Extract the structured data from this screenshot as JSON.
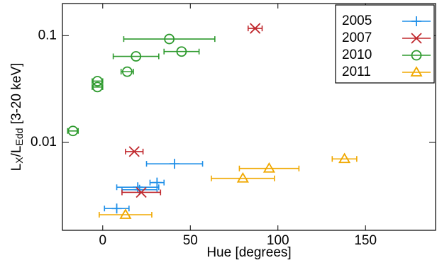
{
  "chart_data": {
    "type": "scatter",
    "xlabel": "Hue [degrees]",
    "ylabel": [
      "L",
      "X",
      "/L",
      "Edd",
      " [3-20 keV]"
    ],
    "xlim": [
      -23,
      190
    ],
    "xticks": [
      0,
      50,
      100,
      150
    ],
    "ylim": [
      0.0015,
      0.2
    ],
    "yticks": [
      0.01,
      0.1
    ],
    "ylog": true,
    "legend": "upper right",
    "series": [
      {
        "name": "2005",
        "color": "#1f8fe8",
        "marker": "plus",
        "x": [
          41,
          31,
          20,
          21,
          8
        ],
        "values": [
          0.0063,
          0.0042,
          0.0038,
          0.0036,
          0.0024
        ],
        "xerr": [
          16,
          4,
          12,
          10,
          7
        ]
      },
      {
        "name": "2007",
        "color": "#c0282d",
        "marker": "cross",
        "x": [
          87,
          18,
          22
        ],
        "values": [
          0.117,
          0.0082,
          0.0034
        ],
        "xerr": [
          4,
          5,
          11
        ]
      },
      {
        "name": "2010",
        "color": "#2e9a2e",
        "marker": "circle",
        "x": [
          38,
          45,
          19,
          14,
          -3,
          -3,
          -17
        ],
        "values": [
          0.093,
          0.071,
          0.064,
          0.046,
          0.0375,
          0.033,
          0.0128
        ],
        "xerr": [
          26,
          10,
          13,
          3.5,
          3,
          3,
          3
        ]
      },
      {
        "name": "2011",
        "color": "#f0a800",
        "marker": "triangle",
        "x": [
          138,
          95,
          80,
          13
        ],
        "values": [
          0.007,
          0.0057,
          0.0046,
          0.0021
        ],
        "xerr": [
          7,
          17,
          18,
          15
        ]
      }
    ]
  }
}
